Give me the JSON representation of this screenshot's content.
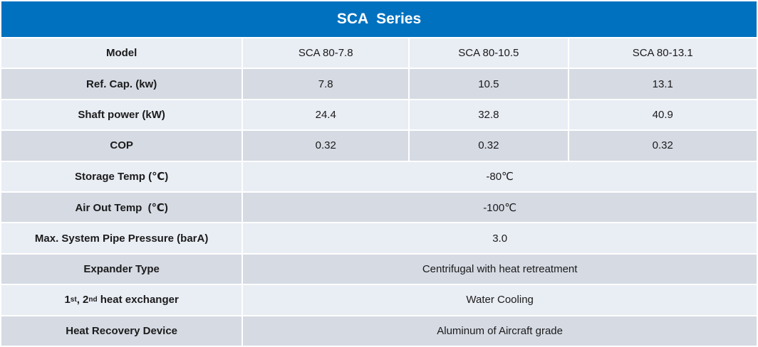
{
  "title": "SCA  Series",
  "colors": {
    "header_bg": "#0071bf",
    "row_light": "#e9edf4",
    "row_dark": "#d5dae3",
    "header_text": "#ffffff",
    "body_text": "#1b1b1b"
  },
  "rows": [
    {
      "label": "Model",
      "values": [
        "SCA 80-7.8",
        "SCA 80-10.5",
        "SCA 80-13.1"
      ]
    },
    {
      "label": "Ref. Cap. (kw)",
      "values": [
        "7.8",
        "10.5",
        "13.1"
      ]
    },
    {
      "label": "Shaft power (kW)",
      "values": [
        "24.4",
        "32.8",
        "40.9"
      ]
    },
    {
      "label": "COP",
      "values": [
        "0.32",
        "0.32",
        "0.32"
      ]
    },
    {
      "label": "Storage Temp (℃)",
      "merged_value": "-80℃"
    },
    {
      "label": "Air Out Temp  (℃)",
      "merged_value": "-100℃"
    },
    {
      "label": "Max. System Pipe Pressure (barA)",
      "merged_value": "3.0"
    },
    {
      "label": "Expander Type",
      "merged_value": "Centrifugal with heat retreatment"
    },
    {
      "label": "1st, 2nd heat exchanger",
      "label_parts": {
        "p0": "1",
        "sup0": "st",
        "p1": ", 2",
        "sup1": "nd",
        "p2": " heat exchanger"
      },
      "merged_value": "Water Cooling"
    },
    {
      "label": "Heat Recovery Device",
      "merged_value": "Aluminum of Aircraft grade"
    }
  ]
}
